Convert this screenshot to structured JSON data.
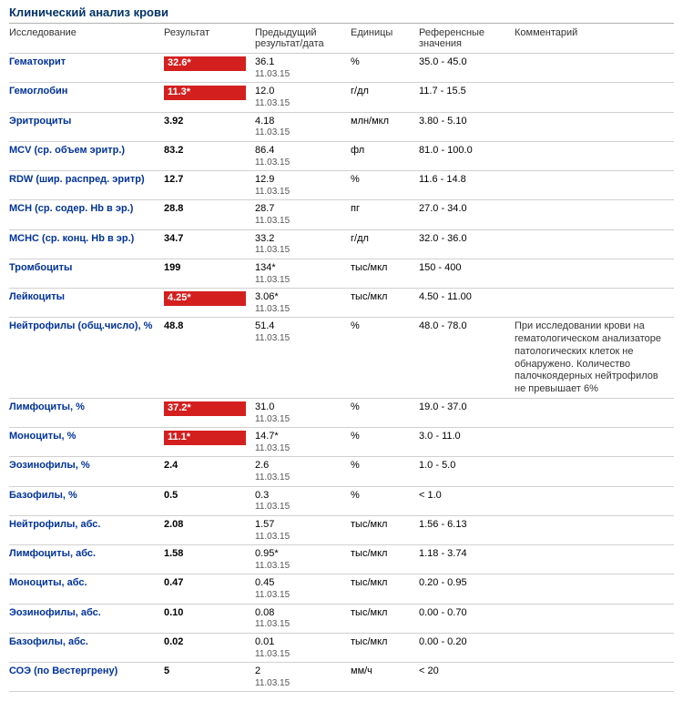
{
  "title": "Клинический анализ крови",
  "columns": {
    "name": "Исследование",
    "result": "Результат",
    "prev": "Предыдущий результат/дата",
    "units": "Единицы",
    "ref": "Референсные значения",
    "comm": "Комментарий"
  },
  "colors": {
    "title_text": "#003366",
    "link_text": "#003399",
    "alert_bg": "#d41f1f",
    "alert_text": "#ffffff",
    "border": "#cccccc",
    "background": "#ffffff"
  },
  "font": {
    "family": "Verdana",
    "base_size_pt": 8,
    "title_size_pt": 10
  },
  "rows": [
    {
      "name": "Гематокрит",
      "result": "32.6*",
      "alert": true,
      "prev": "36.1",
      "prev_date": "11.03.15",
      "units": "%",
      "ref": "35.0 - 45.0",
      "comment": ""
    },
    {
      "name": "Гемоглобин",
      "result": "11.3*",
      "alert": true,
      "prev": "12.0",
      "prev_date": "11.03.15",
      "units": "г/дл",
      "ref": "11.7 - 15.5",
      "comment": ""
    },
    {
      "name": "Эритроциты",
      "result": "3.92",
      "alert": false,
      "prev": "4.18",
      "prev_date": "11.03.15",
      "units": "млн/мкл",
      "ref": "3.80 - 5.10",
      "comment": ""
    },
    {
      "name": "MCV (ср. объем эритр.)",
      "result": "83.2",
      "alert": false,
      "prev": "86.4",
      "prev_date": "11.03.15",
      "units": "фл",
      "ref": "81.0 - 100.0",
      "comment": ""
    },
    {
      "name": "RDW (шир. распред. эритр)",
      "result": "12.7",
      "alert": false,
      "prev": "12.9",
      "prev_date": "11.03.15",
      "units": "%",
      "ref": "11.6 - 14.8",
      "comment": ""
    },
    {
      "name": "MCH (ср. содер. Hb в эр.)",
      "result": "28.8",
      "alert": false,
      "prev": "28.7",
      "prev_date": "11.03.15",
      "units": "пг",
      "ref": "27.0 - 34.0",
      "comment": ""
    },
    {
      "name": "MCHC (ср. конц. Hb в эр.)",
      "result": "34.7",
      "alert": false,
      "prev": "33.2",
      "prev_date": "11.03.15",
      "units": "г/дл",
      "ref": "32.0 - 36.0",
      "comment": ""
    },
    {
      "name": "Тромбоциты",
      "result": "199",
      "alert": false,
      "prev": "134*",
      "prev_date": "11.03.15",
      "units": "тыс/мкл",
      "ref": "150 - 400",
      "comment": ""
    },
    {
      "name": "Лейкоциты",
      "result": "4.25*",
      "alert": true,
      "prev": "3.06*",
      "prev_date": "11.03.15",
      "units": "тыс/мкл",
      "ref": "4.50 - 11.00",
      "comment": ""
    },
    {
      "name": "Нейтрофилы (общ.число), %",
      "result": "48.8",
      "alert": false,
      "prev": "51.4",
      "prev_date": "11.03.15",
      "units": "%",
      "ref": "48.0 - 78.0",
      "comment": "При исследовании крови на гематологическом анализаторе патологических клеток не обнаружено. Количество палочкоядерных нейтрофилов не превышает 6%"
    },
    {
      "name": "Лимфоциты, %",
      "result": "37.2*",
      "alert": true,
      "prev": "31.0",
      "prev_date": "11.03.15",
      "units": "%",
      "ref": "19.0 - 37.0",
      "comment": ""
    },
    {
      "name": "Моноциты, %",
      "result": "11.1*",
      "alert": true,
      "prev": "14.7*",
      "prev_date": "11.03.15",
      "units": "%",
      "ref": "3.0 - 11.0",
      "comment": ""
    },
    {
      "name": "Эозинофилы, %",
      "result": "2.4",
      "alert": false,
      "prev": "2.6",
      "prev_date": "11.03.15",
      "units": "%",
      "ref": "1.0 - 5.0",
      "comment": ""
    },
    {
      "name": "Базофилы, %",
      "result": "0.5",
      "alert": false,
      "prev": "0.3",
      "prev_date": "11.03.15",
      "units": "%",
      "ref": "< 1.0",
      "comment": ""
    },
    {
      "name": "Нейтрофилы, абс.",
      "result": "2.08",
      "alert": false,
      "prev": "1.57",
      "prev_date": "11.03.15",
      "units": "тыс/мкл",
      "ref": "1.56 - 6.13",
      "comment": ""
    },
    {
      "name": "Лимфоциты, абс.",
      "result": "1.58",
      "alert": false,
      "prev": "0.95*",
      "prev_date": "11.03.15",
      "units": "тыс/мкл",
      "ref": "1.18 - 3.74",
      "comment": ""
    },
    {
      "name": "Моноциты, абс.",
      "result": "0.47",
      "alert": false,
      "prev": "0.45",
      "prev_date": "11.03.15",
      "units": "тыс/мкл",
      "ref": "0.20 - 0.95",
      "comment": ""
    },
    {
      "name": "Эозинофилы, абс.",
      "result": "0.10",
      "alert": false,
      "prev": "0.08",
      "prev_date": "11.03.15",
      "units": "тыс/мкл",
      "ref": "0.00 - 0.70",
      "comment": ""
    },
    {
      "name": "Базофилы, абс.",
      "result": "0.02",
      "alert": false,
      "prev": "0.01",
      "prev_date": "11.03.15",
      "units": "тыс/мкл",
      "ref": "0.00 - 0.20",
      "comment": ""
    },
    {
      "name": "СОЭ (по Вестергрену)",
      "result": "5",
      "alert": false,
      "prev": "2",
      "prev_date": "11.03.15",
      "units": "мм/ч",
      "ref": "< 20",
      "comment": ""
    }
  ]
}
